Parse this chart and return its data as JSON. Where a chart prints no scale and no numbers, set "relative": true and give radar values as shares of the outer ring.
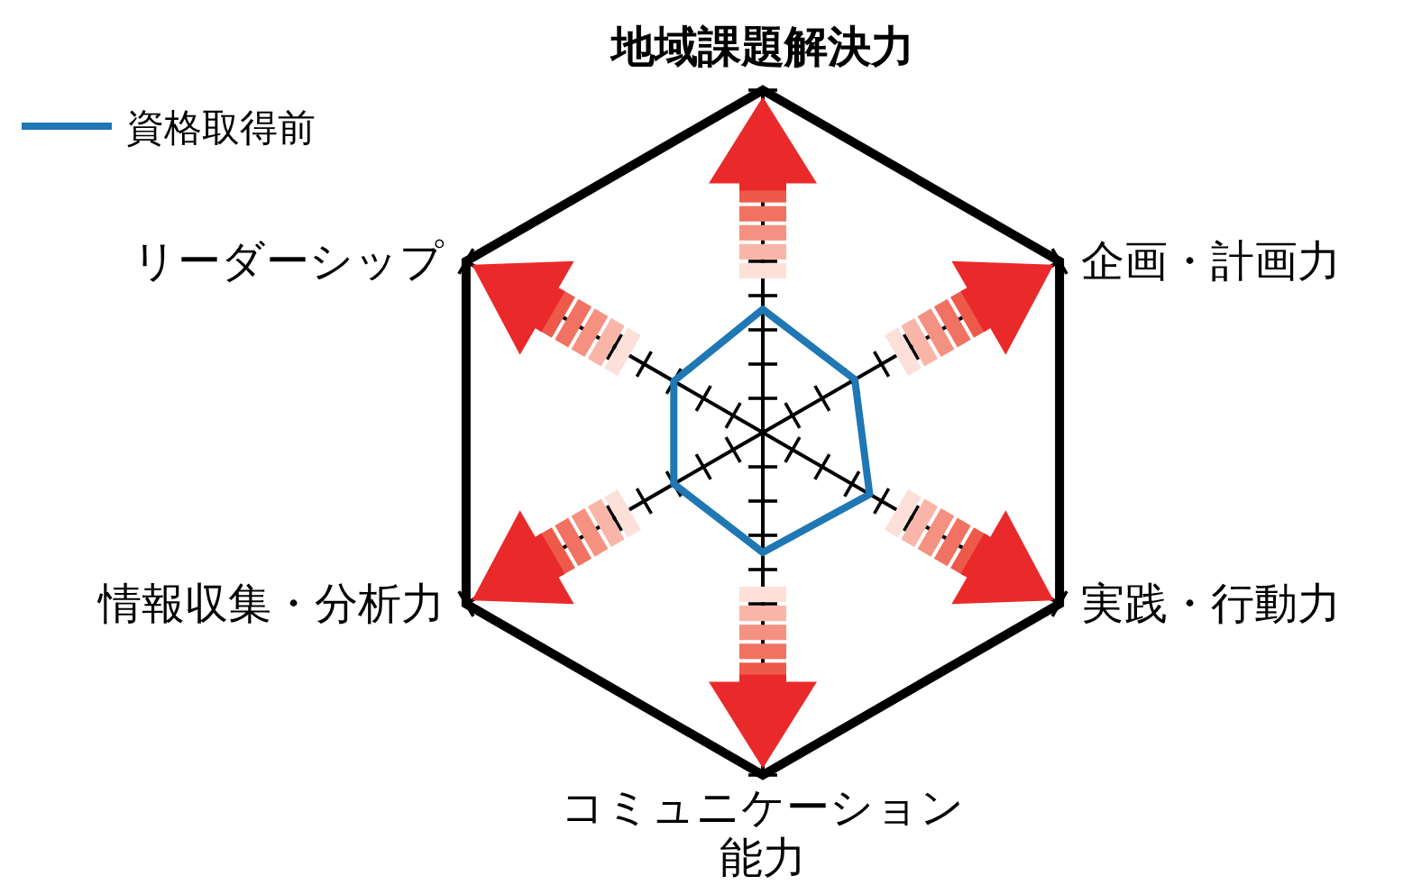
{
  "chart_data": {
    "type": "radar",
    "relative": true,
    "legend": "top left",
    "categories": [
      "地域課題解決力",
      "企画・計画力",
      "実践・行動力",
      "コミュニケーション能力",
      "情報収集・分析力",
      "リーダーシップ"
    ],
    "series": [
      {
        "name": "資格取得前",
        "color": "#1f77b4",
        "values": [
          0.36,
          0.31,
          0.36,
          0.35,
          0.3,
          0.3
        ]
      }
    ]
  }
}
